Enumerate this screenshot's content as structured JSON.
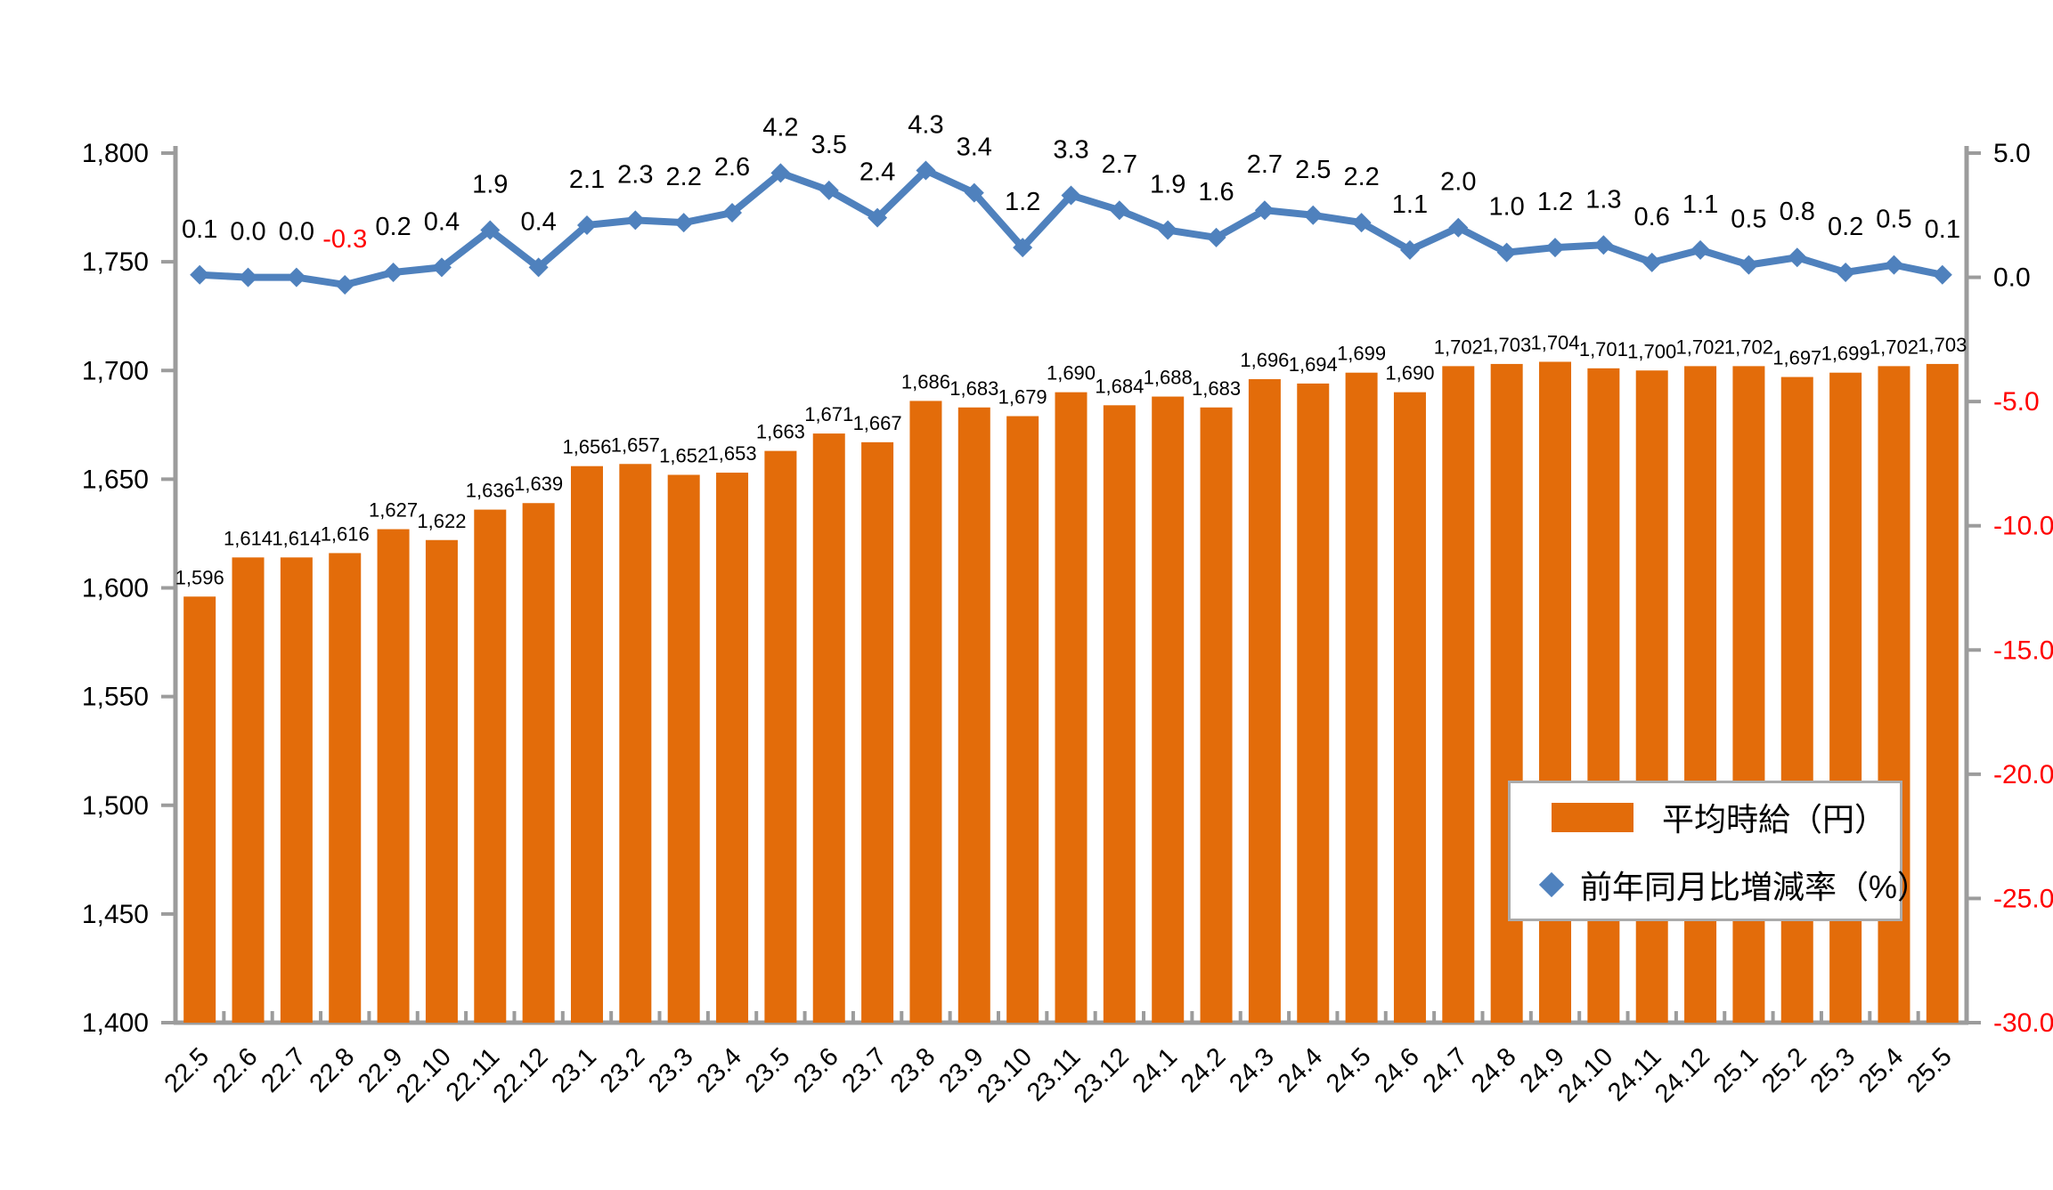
{
  "chart_data": {
    "type": "bar",
    "title": "",
    "xlabel": "",
    "ylabel_left": "",
    "ylabel_right": "",
    "grid": false,
    "legend_position": "inside-right",
    "axis_color": "#9c9c9c",
    "text_color": "#000000",
    "negative_color": "#ff0000",
    "categories": [
      "22.5",
      "22.6",
      "22.7",
      "22.8",
      "22.9",
      "22.10",
      "22.11",
      "22.12",
      "23.1",
      "23.2",
      "23.3",
      "23.4",
      "23.5",
      "23.6",
      "23.7",
      "23.8",
      "23.9",
      "23.10",
      "23.11",
      "23.12",
      "24.1",
      "24.2",
      "24.3",
      "24.4",
      "24.5",
      "24.6",
      "24.7",
      "24.8",
      "24.9",
      "24.10",
      "24.11",
      "24.12",
      "25.1",
      "25.2",
      "25.3",
      "25.4",
      "25.5"
    ],
    "series": [
      {
        "name": "平均時給（円）",
        "type": "bar",
        "axis": "left",
        "color": "#e36c0a",
        "values": [
          1596,
          1614,
          1614,
          1616,
          1627,
          1622,
          1636,
          1639,
          1656,
          1657,
          1652,
          1653,
          1663,
          1671,
          1667,
          1686,
          1683,
          1679,
          1690,
          1684,
          1688,
          1683,
          1696,
          1694,
          1699,
          1690,
          1702,
          1703,
          1704,
          1701,
          1700,
          1702,
          1702,
          1697,
          1699,
          1702,
          1703
        ]
      },
      {
        "name": "前年同月比増減率（%）",
        "type": "line",
        "axis": "right",
        "color": "#4f81bd",
        "marker": "diamond",
        "values": [
          0.1,
          0.0,
          0.0,
          -0.3,
          0.2,
          0.4,
          1.9,
          0.4,
          2.1,
          2.3,
          2.2,
          2.6,
          4.2,
          3.5,
          2.4,
          4.3,
          3.4,
          1.2,
          3.3,
          2.7,
          1.9,
          1.6,
          2.7,
          2.5,
          2.2,
          1.1,
          2.0,
          1.0,
          1.2,
          1.3,
          0.6,
          1.1,
          0.5,
          0.8,
          0.2,
          0.5,
          0.1
        ]
      }
    ],
    "left_axis": {
      "min": 1400,
      "max": 1800,
      "step": 50,
      "tick_labels": [
        "1,400",
        "1,450",
        "1,500",
        "1,550",
        "1,600",
        "1,650",
        "1,700",
        "1,750",
        "1,800"
      ]
    },
    "right_axis": {
      "min": -30,
      "max": 5,
      "step": 5,
      "tick_labels": [
        "-30.0",
        "-25.0",
        "-20.0",
        "-15.0",
        "-10.0",
        "-5.0",
        "0.0",
        "5.0"
      ]
    }
  }
}
